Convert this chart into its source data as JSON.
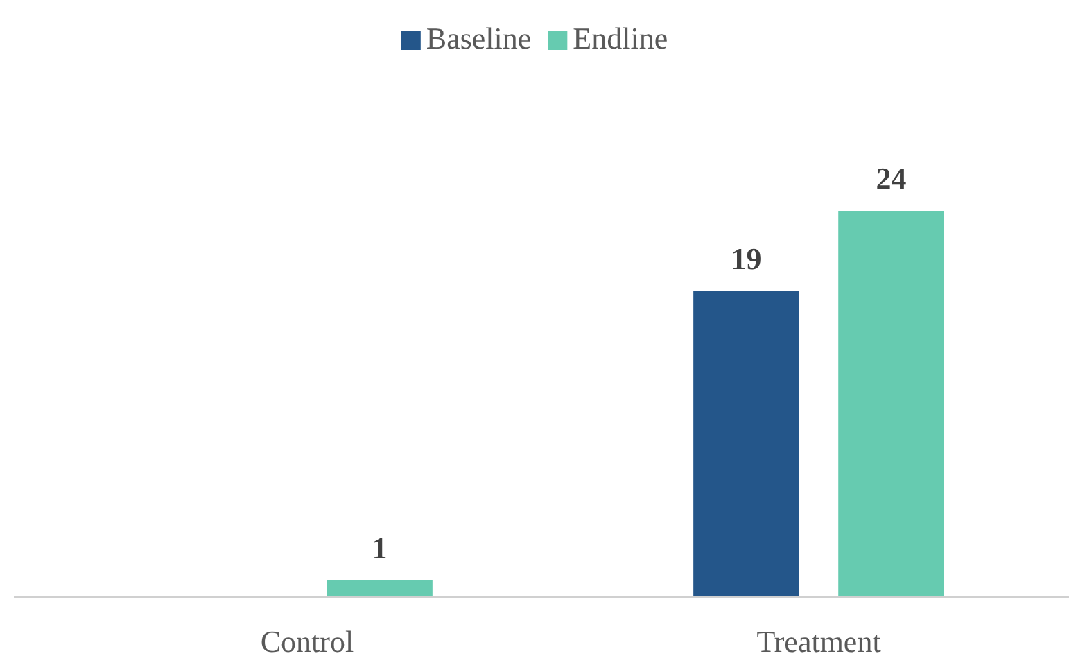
{
  "chart_data": {
    "type": "bar",
    "categories": [
      "Control",
      "Treatment"
    ],
    "series": [
      {
        "name": "Baseline",
        "color": "#24568a",
        "values": [
          null,
          19
        ]
      },
      {
        "name": "Endline",
        "color": "#66cbb0",
        "values": [
          1,
          24
        ]
      }
    ],
    "data_labels": true,
    "legend": "top",
    "grid": false
  }
}
